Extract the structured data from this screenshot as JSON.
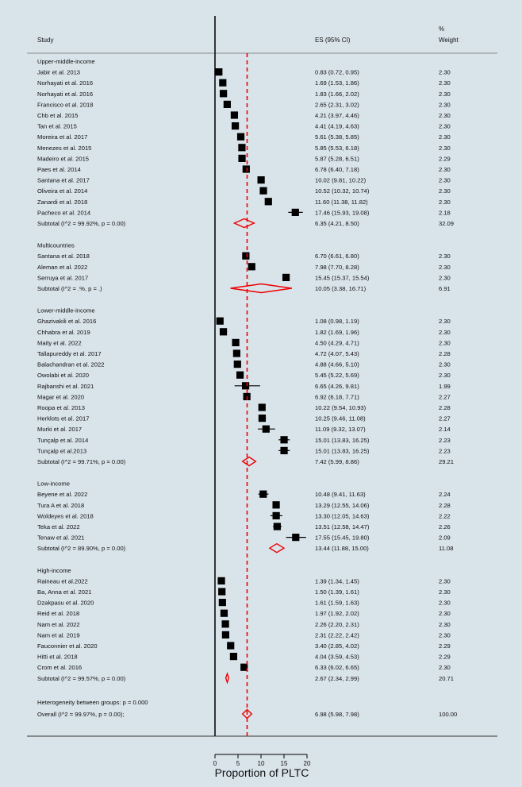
{
  "header": {
    "study": "Study",
    "es": "ES (95% CI)",
    "pct": "%",
    "weight": "Weight"
  },
  "footer": {
    "heterogeneity": "Heterogeneity between groups: p = 0.000",
    "overall_label": "Overall  (I^2 = 99.97%, p = 0.00);",
    "overall_es": "6.98 (5.98, 7.98)",
    "overall_weight": "100.00"
  },
  "chart_data": {
    "type": "forest",
    "xlabel": "Proportion of PLTC",
    "xticks": [
      0,
      5,
      10,
      15,
      20
    ],
    "xlim": [
      0,
      20
    ],
    "overall": {
      "es": 6.98,
      "lo": 5.98,
      "hi": 7.98,
      "weight": "100.00"
    },
    "groups": [
      {
        "name": "Upper-middle-income",
        "studies": [
          {
            "label": "Jabir et al. 2013",
            "es": 0.83,
            "lo": 0.72,
            "hi": 0.95,
            "ci": "0.83 (0.72, 0.95)",
            "w": "2.30"
          },
          {
            "label": "Norhayati et al. 2016",
            "es": 1.69,
            "lo": 1.53,
            "hi": 1.86,
            "ci": "1.69 (1.53, 1.86)",
            "w": "2.30"
          },
          {
            "label": "Norhayati et al. 2016",
            "es": 1.83,
            "lo": 1.66,
            "hi": 2.02,
            "ci": "1.83 (1.66, 2.02)",
            "w": "2.30"
          },
          {
            "label": "Francisco et al. 2018",
            "es": 2.65,
            "lo": 2.31,
            "hi": 3.02,
            "ci": "2.65 (2.31, 3.02)",
            "w": "2.30"
          },
          {
            "label": "Chb et al. 2015",
            "es": 4.21,
            "lo": 3.97,
            "hi": 4.46,
            "ci": "4.21 (3.97, 4.46)",
            "w": "2.30"
          },
          {
            "label": "Tan et al. 2015",
            "es": 4.41,
            "lo": 4.19,
            "hi": 4.63,
            "ci": "4.41 (4.19, 4.63)",
            "w": "2.30"
          },
          {
            "label": "Moreira et al. 2017",
            "es": 5.61,
            "lo": 5.38,
            "hi": 5.85,
            "ci": "5.61 (5.38, 5.85)",
            "w": "2.30"
          },
          {
            "label": "Menezes et al. 2015",
            "es": 5.85,
            "lo": 5.53,
            "hi": 6.18,
            "ci": "5.85 (5.53, 6.18)",
            "w": "2.30"
          },
          {
            "label": "Madeiro et al. 2015",
            "es": 5.87,
            "lo": 5.28,
            "hi": 6.51,
            "ci": "5.87 (5.28, 6.51)",
            "w": "2.29"
          },
          {
            "label": "Paes et al. 2014",
            "es": 6.78,
            "lo": 6.4,
            "hi": 7.18,
            "ci": "6.78 (6.40, 7.18)",
            "w": "2.30"
          },
          {
            "label": "Santana et al. 2017",
            "es": 10.02,
            "lo": 9.81,
            "hi": 10.22,
            "ci": "10.02 (9.81, 10.22)",
            "w": "2.30"
          },
          {
            "label": "Oliveira et al. 2014",
            "es": 10.52,
            "lo": 10.32,
            "hi": 10.74,
            "ci": "10.52 (10.32, 10.74)",
            "w": "2.30"
          },
          {
            "label": "Zanardi et al. 2018",
            "es": 11.6,
            "lo": 11.38,
            "hi": 11.82,
            "ci": "11.60 (11.38, 11.82)",
            "w": "2.30"
          },
          {
            "label": "Pacheco et al. 2014",
            "es": 17.46,
            "lo": 15.93,
            "hi": 19.08,
            "ci": "17.46 (15.93, 19.08)",
            "w": "2.18"
          }
        ],
        "subtotal": {
          "label": "Subtotal  (I^2 = 99.92%, p = 0.00)",
          "es": 6.35,
          "lo": 4.21,
          "hi": 8.5,
          "ci": "6.35 (4.21, 8.50)",
          "w": "32.09"
        }
      },
      {
        "name": "Multicountries",
        "studies": [
          {
            "label": "Santana et al. 2018",
            "es": 6.7,
            "lo": 6.61,
            "hi": 6.8,
            "ci": "6.70 (6.61, 6.80)",
            "w": "2.30"
          },
          {
            "label": "Aleman et al. 2022",
            "es": 7.98,
            "lo": 7.7,
            "hi": 8.28,
            "ci": "7.98 (7.70, 8.28)",
            "w": "2.30"
          },
          {
            "label": "Serruya et al. 2017",
            "es": 15.45,
            "lo": 15.37,
            "hi": 15.54,
            "ci": "15.45 (15.37, 15.54)",
            "w": "2.30"
          }
        ],
        "subtotal": {
          "label": "Subtotal  (I^2 = .%, p = .)",
          "es": 10.05,
          "lo": 3.38,
          "hi": 16.71,
          "ci": "10.05 (3.38, 16.71)",
          "w": "6.91"
        }
      },
      {
        "name": "Lower-middle-income",
        "studies": [
          {
            "label": "Ghazivakili et al. 2016",
            "es": 1.08,
            "lo": 0.98,
            "hi": 1.19,
            "ci": "1.08 (0.98, 1.19)",
            "w": "2.30"
          },
          {
            "label": "Chhabra et al. 2019",
            "es": 1.82,
            "lo": 1.69,
            "hi": 1.96,
            "ci": "1.82 (1.69, 1.96)",
            "w": "2.30"
          },
          {
            "label": "Maity et al. 2022",
            "es": 4.5,
            "lo": 4.29,
            "hi": 4.71,
            "ci": "4.50 (4.29, 4.71)",
            "w": "2.30"
          },
          {
            "label": "Tallapureddy et al. 2017",
            "es": 4.72,
            "lo": 4.07,
            "hi": 5.43,
            "ci": "4.72 (4.07, 5.43)",
            "w": "2.28"
          },
          {
            "label": "Balachandran et al. 2022",
            "es": 4.88,
            "lo": 4.66,
            "hi": 5.1,
            "ci": "4.88 (4.66, 5.10)",
            "w": "2.30"
          },
          {
            "label": "Owolabi et al. 2020",
            "es": 5.45,
            "lo": 5.22,
            "hi": 5.69,
            "ci": "5.45 (5.22, 5.69)",
            "w": "2.30"
          },
          {
            "label": "Rajbanshi et al. 2021",
            "es": 6.65,
            "lo": 4.26,
            "hi": 9.81,
            "ci": "6.65 (4.26, 9.81)",
            "w": "1.99"
          },
          {
            "label": "Magar et al. 2020",
            "es": 6.92,
            "lo": 6.18,
            "hi": 7.71,
            "ci": "6.92 (6.18, 7.71)",
            "w": "2.27"
          },
          {
            "label": "Roopa et al. 2013",
            "es": 10.22,
            "lo": 9.54,
            "hi": 10.93,
            "ci": "10.22 (9.54, 10.93)",
            "w": "2.28"
          },
          {
            "label": "Herklots et al. 2017",
            "es": 10.25,
            "lo": 9.46,
            "hi": 11.08,
            "ci": "10.25 (9.46, 11.08)",
            "w": "2.27"
          },
          {
            "label": "Murki et al. 2017",
            "es": 11.09,
            "lo": 9.32,
            "hi": 13.07,
            "ci": "11.09 (9.32, 13.07)",
            "w": "2.14"
          },
          {
            "label": "Tunçalp et al. 2014",
            "es": 15.01,
            "lo": 13.83,
            "hi": 16.25,
            "ci": "15.01 (13.83, 16.25)",
            "w": "2.23"
          },
          {
            "label": "Tunçalp et al.2013",
            "es": 15.01,
            "lo": 13.83,
            "hi": 16.25,
            "ci": "15.01 (13.83, 16.25)",
            "w": "2.23"
          }
        ],
        "subtotal": {
          "label": "Subtotal  (I^2 = 99.71%, p = 0.00)",
          "es": 7.42,
          "lo": 5.99,
          "hi": 8.86,
          "ci": "7.42 (5.99, 8.86)",
          "w": "29.21"
        }
      },
      {
        "name": "Low-income",
        "studies": [
          {
            "label": "Beyene et al. 2022",
            "es": 10.48,
            "lo": 9.41,
            "hi": 11.63,
            "ci": "10.48 (9.41, 11.63)",
            "w": "2.24"
          },
          {
            "label": "Tura A et al. 2018",
            "es": 13.29,
            "lo": 12.55,
            "hi": 14.06,
            "ci": "13.29 (12.55, 14.06)",
            "w": "2.28"
          },
          {
            "label": "Woldeyes et al. 2018",
            "es": 13.3,
            "lo": 12.05,
            "hi": 14.63,
            "ci": "13.30 (12.05, 14.63)",
            "w": "2.22"
          },
          {
            "label": "Teka et al. 2022",
            "es": 13.51,
            "lo": 12.58,
            "hi": 14.47,
            "ci": "13.51 (12.58, 14.47)",
            "w": "2.26"
          },
          {
            "label": "Tenaw et al. 2021",
            "es": 17.55,
            "lo": 15.45,
            "hi": 19.8,
            "ci": "17.55 (15.45, 19.80)",
            "w": "2.09"
          }
        ],
        "subtotal": {
          "label": "Subtotal  (I^2 = 89.90%, p = 0.00)",
          "es": 13.44,
          "lo": 11.88,
          "hi": 15.0,
          "ci": "13.44 (11.88, 15.00)",
          "w": "11.08"
        }
      },
      {
        "name": "High-income",
        "studies": [
          {
            "label": "Raineau et al.2022",
            "es": 1.39,
            "lo": 1.34,
            "hi": 1.45,
            "ci": "1.39 (1.34, 1.45)",
            "w": "2.30"
          },
          {
            "label": "Ba, Anna et al. 2021",
            "es": 1.5,
            "lo": 1.39,
            "hi": 1.61,
            "ci": "1.50 (1.39, 1.61)",
            "w": "2.30"
          },
          {
            "label": "Dzakpasu et al. 2020",
            "es": 1.61,
            "lo": 1.59,
            "hi": 1.63,
            "ci": "1.61 (1.59, 1.63)",
            "w": "2.30"
          },
          {
            "label": "Reid et al. 2018",
            "es": 1.97,
            "lo": 1.92,
            "hi": 2.02,
            "ci": "1.97 (1.92, 2.02)",
            "w": "2.30"
          },
          {
            "label": "Nam et al. 2022",
            "es": 2.26,
            "lo": 2.2,
            "hi": 2.31,
            "ci": "2.26 (2.20, 2.31)",
            "w": "2.30"
          },
          {
            "label": "Nam et al. 2019",
            "es": 2.31,
            "lo": 2.22,
            "hi": 2.42,
            "ci": "2.31 (2.22, 2.42)",
            "w": "2.30"
          },
          {
            "label": "Fauconnier et al. 2020",
            "es": 3.4,
            "lo": 2.85,
            "hi": 4.02,
            "ci": "3.40 (2.85, 4.02)",
            "w": "2.29"
          },
          {
            "label": "Hitti et al. 2018",
            "es": 4.04,
            "lo": 3.59,
            "hi": 4.53,
            "ci": "4.04 (3.59, 4.53)",
            "w": "2.29"
          },
          {
            "label": "Crom et al. 2016",
            "es": 6.33,
            "lo": 6.02,
            "hi": 6.65,
            "ci": "6.33 (6.02, 6.65)",
            "w": "2.30"
          }
        ],
        "subtotal": {
          "label": "Subtotal  (I^2 = 99.57%, p = 0.00)",
          "es": 2.67,
          "lo": 2.34,
          "hi": 2.99,
          "ci": "2.67 (2.34, 2.99)",
          "w": "20.71"
        }
      }
    ]
  }
}
